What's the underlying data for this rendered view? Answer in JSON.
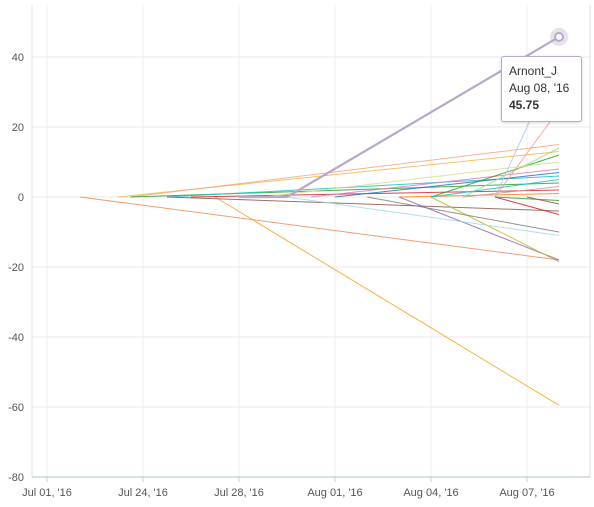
{
  "chart_data": {
    "type": "line",
    "x_ticks": [
      "Jul 01, '16",
      "Jul 24, '16",
      "Jul 28, '16",
      "Aug 01, '16",
      "Aug 04, '16",
      "Aug 07, '16"
    ],
    "y_ticks": [
      40,
      20,
      0,
      -20,
      -40,
      -60,
      -80
    ],
    "ylim": [
      -80,
      50
    ],
    "grid": true,
    "highlighted_series": "Arnont_J",
    "series": [
      {
        "name": "Arnont_J",
        "color": "#b9a9c9",
        "points": [
          [
            "Jul 28, '16",
            0
          ],
          [
            "Jul 30, '16",
            0
          ],
          [
            "Aug 08, '16",
            45.75
          ]
        ]
      },
      {
        "color": "#f5a623",
        "points": [
          [
            "Jul 27, '16",
            0
          ],
          [
            "Aug 08, '16",
            -59.5
          ]
        ]
      },
      {
        "color": "#f28c5a",
        "points": [
          [
            "Jul 19, '16",
            0
          ],
          [
            "Aug 08, '16",
            -18
          ]
        ]
      },
      {
        "color": "#f2b84b",
        "points": [
          [
            "Jul 22, '16",
            0
          ],
          [
            "Aug 08, '16",
            13
          ]
        ]
      },
      {
        "color": "#f4a582",
        "points": [
          [
            "Jul 23, '16",
            0
          ],
          [
            "Aug 08, '16",
            15
          ]
        ]
      },
      {
        "color": "#2ca02c",
        "points": [
          [
            "Jul 23, '16",
            0
          ],
          [
            "Aug 08, '16",
            4
          ]
        ]
      },
      {
        "color": "#17becf",
        "points": [
          [
            "Jul 25, '16",
            0
          ],
          [
            "Aug 08, '16",
            6
          ]
        ]
      },
      {
        "color": "#8c564b",
        "points": [
          [
            "Jul 25, '16",
            0
          ],
          [
            "Aug 08, '16",
            -4
          ]
        ]
      },
      {
        "color": "#d62728",
        "points": [
          [
            "Jul 26, '16",
            0
          ],
          [
            "Aug 08, '16",
            2
          ]
        ]
      },
      {
        "color": "#9467bd",
        "points": [
          [
            "Aug 03, '16",
            0
          ],
          [
            "Aug 08, '16",
            -18
          ]
        ]
      },
      {
        "color": "#bcbd22",
        "points": [
          [
            "Aug 04, '16",
            0
          ],
          [
            "Aug 08, '16",
            -18.5
          ]
        ]
      },
      {
        "color": "#9edae5",
        "points": [
          [
            "Jul 30, '16",
            0
          ],
          [
            "Aug 08, '16",
            -11
          ]
        ]
      },
      {
        "color": "#e377c2",
        "points": [
          [
            "Jul 31, '16",
            0
          ],
          [
            "Aug 08, '16",
            8
          ]
        ]
      },
      {
        "color": "#7f7f7f",
        "points": [
          [
            "Aug 02, '16",
            0
          ],
          [
            "Aug 08, '16",
            -10
          ]
        ]
      },
      {
        "color": "#1f77b4",
        "points": [
          [
            "Aug 01, '16",
            0
          ],
          [
            "Aug 08, '16",
            7
          ]
        ]
      },
      {
        "color": "#ff7f0e",
        "points": [
          [
            "Aug 03, '16",
            0
          ],
          [
            "Aug 08, '16",
            1
          ]
        ]
      },
      {
        "color": "#2ca02c",
        "points": [
          [
            "Aug 04, '16",
            0
          ],
          [
            "Aug 08, '16",
            12
          ]
        ]
      },
      {
        "color": "#c49c94",
        "points": [
          [
            "Aug 05, '16",
            0
          ],
          [
            "Aug 08, '16",
            3
          ]
        ]
      },
      {
        "color": "#98df8a",
        "points": [
          [
            "Aug 05, '16",
            0
          ],
          [
            "Aug 08, '16",
            14
          ]
        ]
      },
      {
        "color": "#aec7e8",
        "points": [
          [
            "Aug 06, '16",
            0
          ],
          [
            "Aug 08, '16",
            40
          ]
        ]
      },
      {
        "color": "#d62728",
        "points": [
          [
            "Aug 06, '16",
            0
          ],
          [
            "Aug 08, '16",
            -5
          ]
        ]
      },
      {
        "color": "#ff9896",
        "points": [
          [
            "Aug 06, '16",
            0
          ],
          [
            "Aug 08, '16",
            25
          ]
        ]
      },
      {
        "color": "#8c564b",
        "points": [
          [
            "Aug 07, '16",
            0
          ],
          [
            "Aug 08, '16",
            -2
          ]
        ]
      },
      {
        "color": "#17becf",
        "points": [
          [
            "Aug 04, '16",
            0
          ],
          [
            "Aug 08, '16",
            5
          ]
        ]
      },
      {
        "color": "#dbdb8d",
        "points": [
          [
            "Jul 29, '16",
            0
          ],
          [
            "Aug 08, '16",
            10
          ]
        ]
      },
      {
        "color": "#2ca02c",
        "points": [
          [
            "Aug 06, '16",
            0
          ],
          [
            "Aug 08, '16",
            -1
          ]
        ]
      }
    ],
    "tooltip": {
      "name": "Arnont_J",
      "date": "Aug 08, '16",
      "value": "45.75"
    }
  }
}
